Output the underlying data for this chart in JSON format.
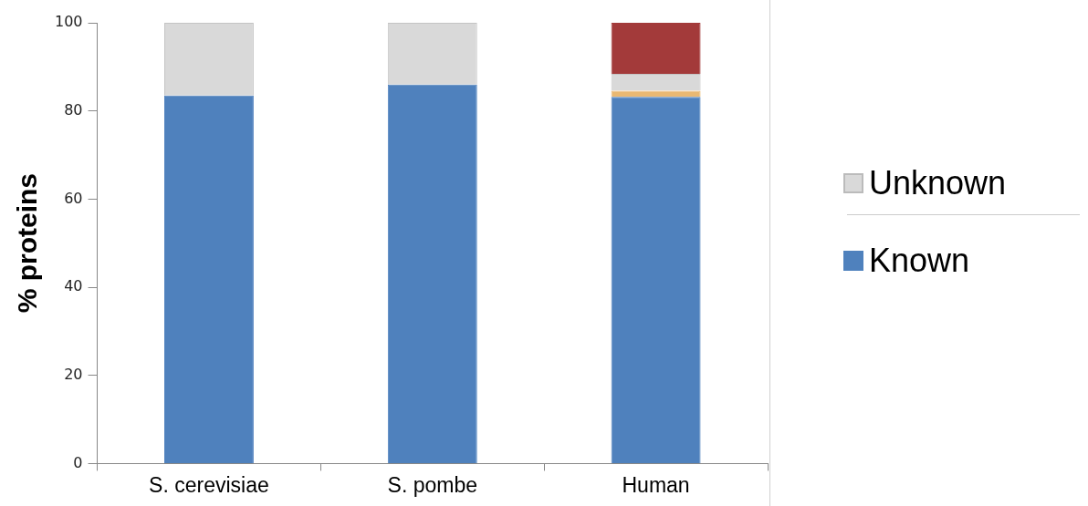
{
  "chart_data": {
    "type": "bar",
    "ylabel": "% proteins",
    "categories": [
      "S. cerevisiae",
      "S. pombe",
      "Human"
    ],
    "stacked": true,
    "series": [
      {
        "name": "Known",
        "color": "#4f81bd",
        "values": [
          83.5,
          86,
          83.2
        ]
      },
      {
        "color": "#e9b872",
        "values": [
          null,
          null,
          1.4
        ]
      },
      {
        "name": "Unknown",
        "color": "#d9d9d9",
        "values": [
          16.5,
          14,
          3.8
        ]
      },
      {
        "color": "#a33a3a",
        "values": [
          null,
          null,
          11.6
        ]
      }
    ],
    "ylim": [
      0,
      100
    ],
    "yticks": [
      0,
      20,
      40,
      60,
      80,
      100
    ],
    "grid": false,
    "legend": "right"
  }
}
